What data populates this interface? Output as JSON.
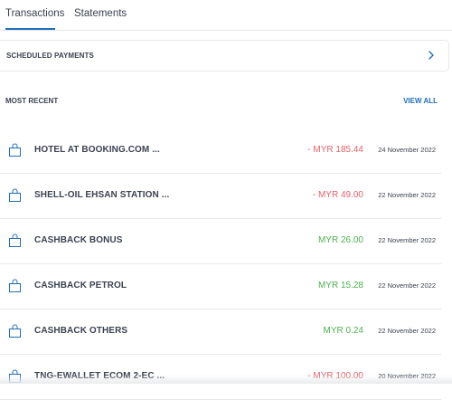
{
  "tabs": [
    {
      "label": "Transactions",
      "active": true
    },
    {
      "label": "Statements",
      "active": false
    }
  ],
  "scheduled": {
    "label": "SCHEDULED PAYMENTS",
    "icon": "chevron-right-icon"
  },
  "recent": {
    "title": "MOST RECENT",
    "view_all": "VIEW ALL"
  },
  "transactions": [
    {
      "title": "HOTEL AT BOOKING.COM ...",
      "amount": "- MYR 185.44",
      "date": "24 November 2022",
      "type": "debit"
    },
    {
      "title": "SHELL-OIL EHSAN STATION ...",
      "amount": "- MYR 49.00",
      "date": "22 November 2022",
      "type": "debit"
    },
    {
      "title": "CASHBACK BONUS",
      "amount": "MYR 26.00",
      "date": "22 November 2022",
      "type": "credit"
    },
    {
      "title": "CASHBACK PETROL",
      "amount": "MYR 15.28",
      "date": "22 November 2022",
      "type": "credit"
    },
    {
      "title": "CASHBACK OTHERS",
      "amount": "MYR 0.24",
      "date": "22 November 2022",
      "type": "credit"
    },
    {
      "title": "TNG-EWALLET ECOM 2-EC ...",
      "amount": "- MYR 100.00",
      "date": "20 November 2022",
      "type": "debit"
    }
  ],
  "colors": {
    "accent": "#1f6fb8",
    "debit": "#e2626b",
    "credit": "#4cb050"
  }
}
